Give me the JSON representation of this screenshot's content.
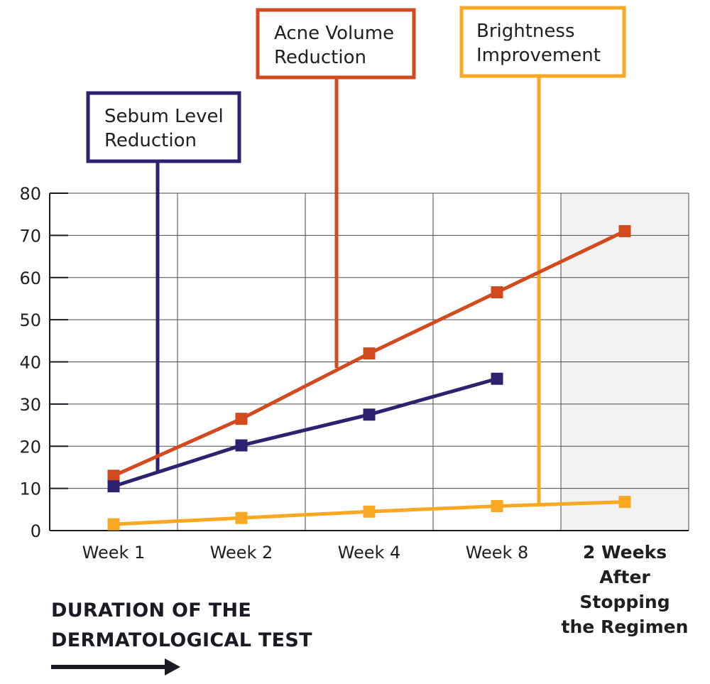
{
  "chart_data": {
    "type": "line",
    "categories": [
      "Week 1",
      "Week 2",
      "Week 4",
      "Week 8",
      "2 Weeks After Stopping the Regimen"
    ],
    "category_lines": [
      [
        "Week 1"
      ],
      [
        "Week 2"
      ],
      [
        "Week 4"
      ],
      [
        "Week 8"
      ],
      [
        "2 Weeks",
        "After",
        "Stopping",
        "the Regimen"
      ]
    ],
    "ylim": [
      0,
      80
    ],
    "yticks": [
      0,
      10,
      20,
      30,
      40,
      50,
      60,
      70,
      80
    ],
    "grid": true,
    "shaded_category": "2 Weeks After Stopping the Regimen",
    "series": [
      {
        "name": "Acne Volume Reduction",
        "name_lines": [
          "Acne Volume",
          "Reduction"
        ],
        "color": "#d34a1e",
        "values": [
          13,
          26.5,
          42,
          56.5,
          71
        ]
      },
      {
        "name": "Sebum Level Reduction",
        "name_lines": [
          "Sebum Level",
          "Reduction"
        ],
        "color": "#2e2170",
        "values": [
          10.5,
          20.2,
          27.5,
          36,
          null
        ]
      },
      {
        "name": "Brightness Improvement",
        "name_lines": [
          "Brightness",
          "Improvement"
        ],
        "color": "#f8a823",
        "values": [
          1.5,
          3,
          4.5,
          5.8,
          6.8
        ]
      }
    ],
    "xlabel_lines": [
      "DURATION OF THE",
      "DERMATOLOGICAL TEST"
    ]
  }
}
